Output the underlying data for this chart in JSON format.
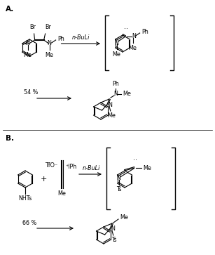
{
  "background_color": "#ffffff",
  "label_A": "A.",
  "label_B": "B.",
  "reagent_A": "n-BuLi",
  "reagent_B": "n-BuLi",
  "yield_A": "54 %",
  "yield_B": "66 %",
  "fig_width": 3.07,
  "fig_height": 3.63,
  "dpi": 100
}
